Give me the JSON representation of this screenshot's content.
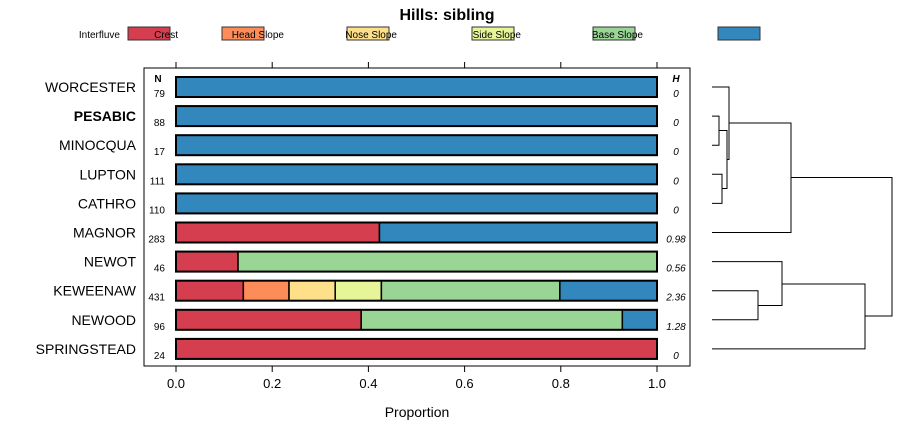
{
  "chart_data": {
    "type": "bar",
    "orientation": "horizontal-stacked",
    "title": "Hills: sibling",
    "xlabel": "Proportion",
    "ylabel": "",
    "xlim": [
      0,
      1
    ],
    "x_ticks": [
      "0.0",
      "0.2",
      "0.4",
      "0.6",
      "0.8",
      "1.0"
    ],
    "n_header": "N",
    "h_header": "H",
    "legend": {
      "placement": "top",
      "entries": [
        {
          "name": "Interfluve",
          "color": "#D53E4F"
        },
        {
          "name": "Crest",
          "color": "#FC8D59"
        },
        {
          "name": "Head Slope",
          "color": "#FEE08B"
        },
        {
          "name": "Nose Slope",
          "color": "#E6F598"
        },
        {
          "name": "Side Slope",
          "color": "#99D594"
        },
        {
          "name": "Base Slope",
          "color": "#3288BD"
        }
      ]
    },
    "categories": [
      "WORCESTER",
      "PESABIC",
      "MINOCQUA",
      "LUPTON",
      "CATHRO",
      "MAGNOR",
      "NEWOT",
      "KEWEENAW",
      "NEWOOD",
      "SPRINGSTEAD"
    ],
    "highlighted": "PESABIC",
    "n": [
      "79",
      "88",
      "17",
      "111",
      "110",
      "283",
      "46",
      "431",
      "96",
      "24"
    ],
    "h": [
      "0",
      "0",
      "0",
      "0",
      "0",
      "0.98",
      "0.56",
      "2.36",
      "1.28",
      "0"
    ],
    "series": [
      {
        "name": "Interfluve",
        "values": [
          0,
          0,
          0,
          0,
          0,
          0.423,
          0.129,
          0.14,
          0.385,
          1.0
        ]
      },
      {
        "name": "Crest",
        "values": [
          0,
          0,
          0,
          0,
          0,
          0,
          0,
          0.095,
          0,
          0
        ]
      },
      {
        "name": "Head Slope",
        "values": [
          0,
          0,
          0,
          0,
          0,
          0,
          0,
          0.096,
          0,
          0
        ]
      },
      {
        "name": "Nose Slope",
        "values": [
          0,
          0,
          0,
          0,
          0,
          0,
          0,
          0.096,
          0,
          0
        ]
      },
      {
        "name": "Side Slope",
        "values": [
          0,
          0,
          0,
          0,
          0,
          0,
          0.871,
          0.371,
          0.543,
          0
        ]
      },
      {
        "name": "Base Slope",
        "values": [
          1.0,
          1.0,
          1.0,
          1.0,
          1.0,
          0.577,
          0,
          0.202,
          0.072,
          0
        ]
      }
    ],
    "dendrogram": {
      "merges": [
        {
          "a": "PESABIC",
          "b": "MINOCQUA",
          "height": 0.03
        },
        {
          "a": "LUPTON",
          "b": "CATHRO",
          "height": 0.05
        },
        {
          "a": "PESABIC+MINOCQUA",
          "b": "LUPTON+CATHRO",
          "height": 0.08
        },
        {
          "a": "WORCESTER",
          "b": "PESABIC+MINOCQUA+LUPTON+CATHRO",
          "height": 0.09
        },
        {
          "a": "WORCESTER..CATHRO",
          "b": "MAGNOR",
          "height": 0.44
        },
        {
          "a": "KEWEENAW",
          "b": "NEWOOD",
          "height": 0.26
        },
        {
          "a": "NEWOT",
          "b": "KEWEENAW+NEWOOD",
          "height": 0.39
        },
        {
          "a": "NEWOT+KEWEENAW+NEWOOD",
          "b": "SPRINGSTEAD",
          "height": 0.85
        },
        {
          "a": "upper",
          "b": "lower",
          "height": 1.0
        }
      ]
    }
  }
}
